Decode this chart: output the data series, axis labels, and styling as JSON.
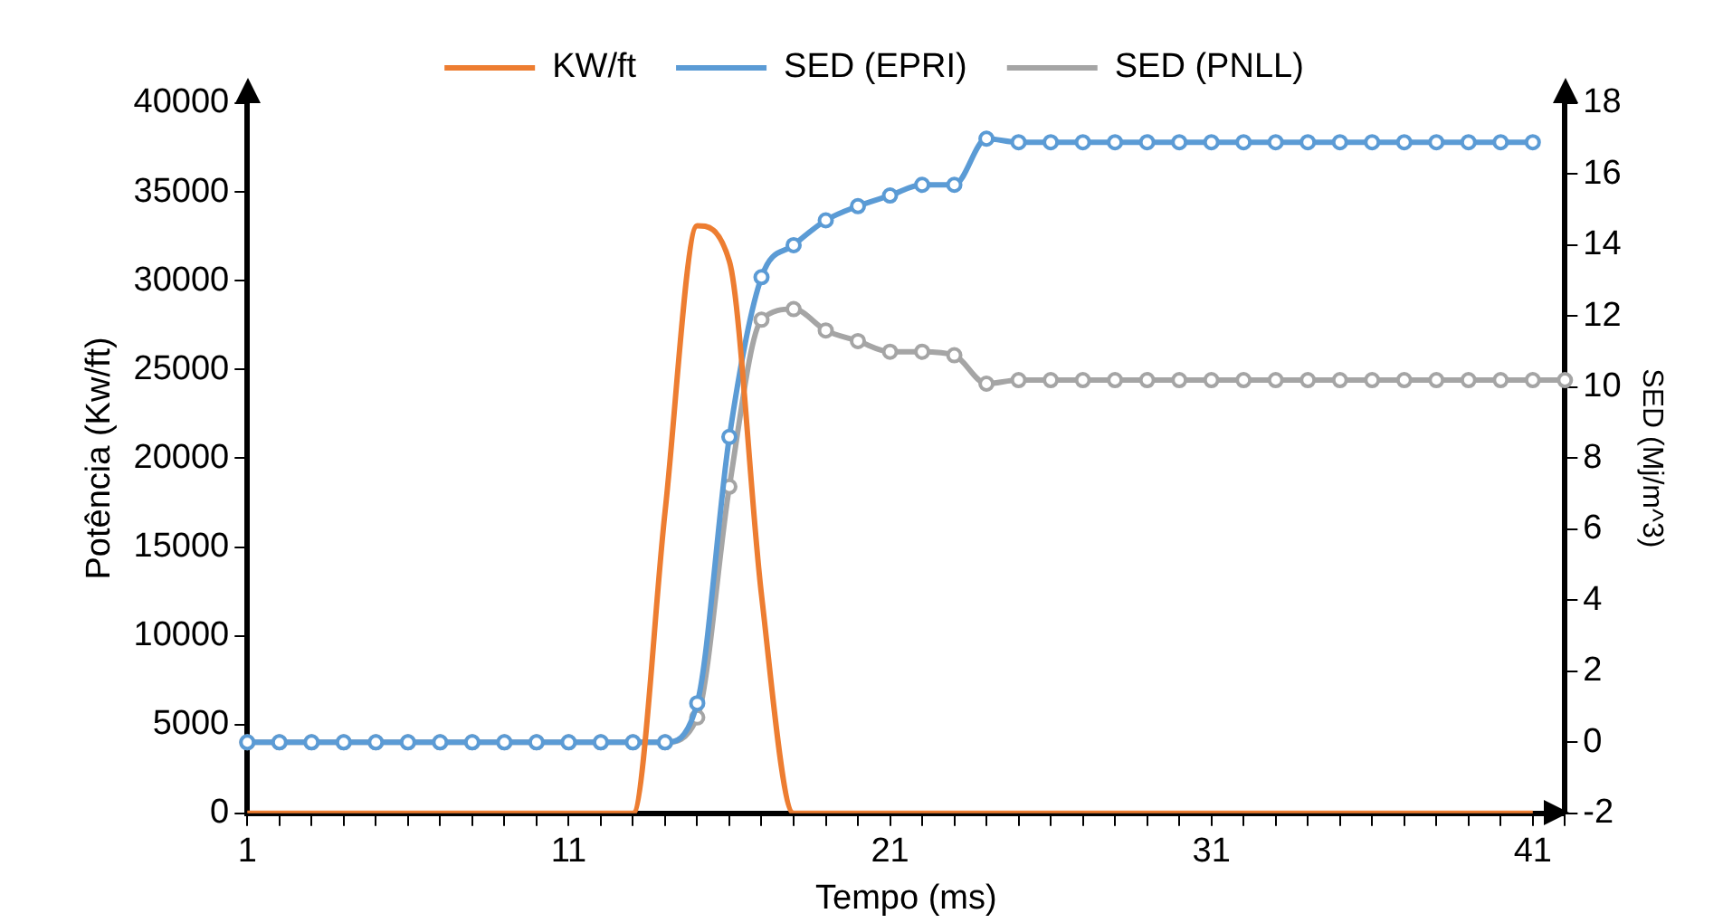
{
  "chart_data": {
    "type": "line",
    "xlabel": "Tempo (ms)",
    "ylabel": "Potência (Kw/ft)",
    "y2label": "SED (Mj/m^3)",
    "categories": [
      "1",
      null,
      null,
      null,
      null,
      null,
      null,
      null,
      null,
      null,
      "11",
      null,
      null,
      null,
      null,
      null,
      null,
      null,
      null,
      null,
      "21",
      null,
      null,
      null,
      null,
      null,
      null,
      null,
      null,
      null,
      "31",
      null,
      null,
      null,
      null,
      null,
      null,
      null,
      null,
      null,
      "41",
      null
    ],
    "series": [
      {
        "name": "KW/ft",
        "color": "#ed7d31",
        "marker": "none",
        "values": [
          0,
          0,
          0,
          0,
          0,
          0,
          0,
          0,
          0,
          0,
          0,
          0,
          0,
          17000,
          33100,
          31100,
          12300,
          0,
          0,
          0,
          0,
          0,
          0,
          0,
          0,
          0,
          0,
          0,
          0,
          0,
          0,
          0,
          0,
          0,
          0,
          0,
          0,
          0,
          0,
          0,
          0,
          null
        ]
      },
      {
        "name": "SED (EPRI)",
        "color": "#5b9bd5",
        "marker": "circle",
        "axis": "y2",
        "values": [
          0,
          0,
          0,
          0,
          0,
          0,
          0,
          0,
          0,
          0,
          0,
          0,
          0,
          0,
          1.1,
          8.6,
          13.1,
          14.0,
          14.7,
          15.1,
          15.4,
          15.7,
          15.7,
          17.0,
          16.9,
          16.9,
          16.9,
          16.9,
          16.9,
          16.9,
          16.9,
          16.9,
          16.9,
          16.9,
          16.9,
          16.9,
          16.9,
          16.9,
          16.9,
          16.9,
          16.9,
          null
        ]
      },
      {
        "name": "SED (PNLL)",
        "color": "#a5a5a5",
        "marker": "circle",
        "axis": "y2",
        "values": [
          0,
          0,
          0,
          0,
          0,
          0,
          0,
          0,
          0,
          0,
          0,
          0,
          0,
          0,
          0.7,
          7.2,
          11.9,
          12.2,
          11.6,
          11.3,
          11.0,
          11.0,
          10.9,
          10.1,
          10.2,
          10.2,
          10.2,
          10.2,
          10.2,
          10.2,
          10.2,
          10.2,
          10.2,
          10.2,
          10.2,
          10.2,
          10.2,
          10.2,
          10.2,
          10.2,
          10.2,
          10.2
        ]
      }
    ],
    "ylim": [
      0,
      40000
    ],
    "yticks": [
      0,
      5000,
      10000,
      15000,
      20000,
      25000,
      30000,
      35000,
      40000
    ],
    "y2lim": [
      -2,
      18
    ],
    "y2ticks": [
      -2,
      0,
      2,
      4,
      6,
      8,
      10,
      12,
      14,
      16,
      18
    ],
    "grid": false,
    "legend": "top",
    "line_style": "solid"
  }
}
